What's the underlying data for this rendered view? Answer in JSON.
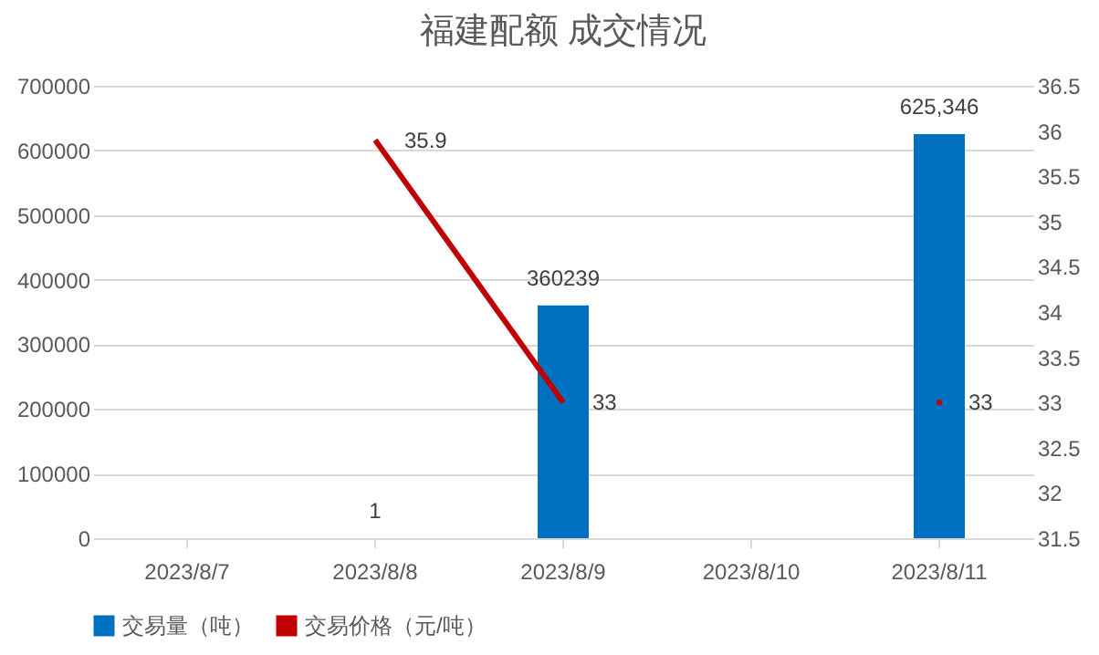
{
  "chart_data": {
    "type": "bar",
    "title": "福建配额 成交情况",
    "categories": [
      "2023/8/7",
      "2023/8/8",
      "2023/8/9",
      "2023/8/10",
      "2023/8/11"
    ],
    "series": [
      {
        "name": "交易量（吨）",
        "color": "#0070c0",
        "values": [
          null,
          1,
          360239,
          null,
          625346
        ],
        "value_labels": [
          null,
          "1",
          "360239",
          null,
          "625,346"
        ]
      },
      {
        "name": "交易价格（元/吨）",
        "type": "line",
        "axis": "y2",
        "color": "#c00000",
        "values": [
          null,
          35.9,
          33,
          null,
          33
        ],
        "value_labels": [
          null,
          "35.9",
          "33",
          null,
          "33"
        ]
      }
    ],
    "ylim": [
      0,
      700000
    ],
    "yticks": [
      0,
      100000,
      200000,
      300000,
      400000,
      500000,
      600000,
      700000
    ],
    "y2lim": [
      31.5,
      36.5
    ],
    "y2ticks": [
      31.5,
      32,
      32.5,
      33,
      33.5,
      34,
      34.5,
      35,
      35.5,
      36,
      36.5
    ],
    "grid": "y",
    "legend": "bottom",
    "marker": "none",
    "line_style": "solid"
  }
}
